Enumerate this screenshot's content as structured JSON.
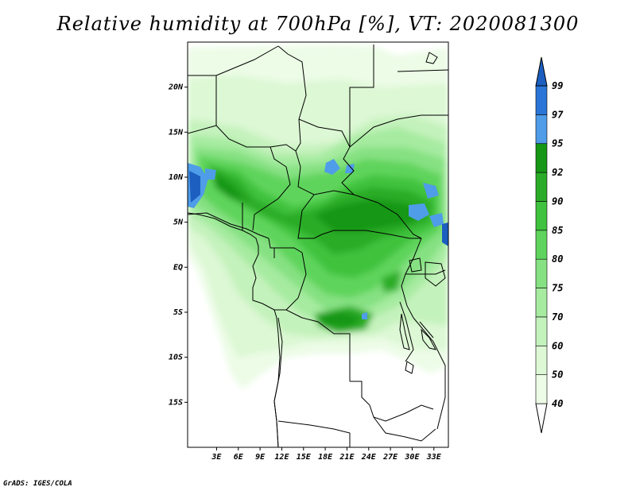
{
  "title": "Relative humidity at 700hPa [%], VT: 2020081300",
  "credit": "GrADS: IGES/COLA",
  "map": {
    "lon_range": [
      -1,
      35
    ],
    "lat_range": [
      -20,
      25
    ],
    "lat_ticks": [
      {
        "value": 20,
        "label": "20N"
      },
      {
        "value": 15,
        "label": "15N"
      },
      {
        "value": 10,
        "label": "10N"
      },
      {
        "value": 5,
        "label": "5N"
      },
      {
        "value": 0,
        "label": "EQ"
      },
      {
        "value": -5,
        "label": "5S"
      },
      {
        "value": -10,
        "label": "10S"
      },
      {
        "value": -15,
        "label": "15S"
      }
    ],
    "lon_ticks": [
      {
        "value": 3,
        "label": "3E"
      },
      {
        "value": 6,
        "label": "6E"
      },
      {
        "value": 9,
        "label": "9E"
      },
      {
        "value": 12,
        "label": "12E"
      },
      {
        "value": 15,
        "label": "15E"
      },
      {
        "value": 18,
        "label": "18E"
      },
      {
        "value": 21,
        "label": "21E"
      },
      {
        "value": 24,
        "label": "24E"
      },
      {
        "value": 27,
        "label": "27E"
      },
      {
        "value": 30,
        "label": "30E"
      },
      {
        "value": 33,
        "label": "33E"
      }
    ]
  },
  "colorbar": {
    "levels": [
      {
        "label": "40",
        "color": "#ecfce6"
      },
      {
        "label": "50",
        "color": "#dcf8d4"
      },
      {
        "label": "60",
        "color": "#c4f2bc"
      },
      {
        "label": "70",
        "color": "#a6eba0"
      },
      {
        "label": "75",
        "color": "#86e182"
      },
      {
        "label": "80",
        "color": "#5ed45c"
      },
      {
        "label": "85",
        "color": "#3fc23d"
      },
      {
        "label": "90",
        "color": "#2aac28"
      },
      {
        "label": "92",
        "color": "#169716"
      },
      {
        "label": "95",
        "color": "#4f9ce8"
      },
      {
        "label": "97",
        "color": "#2a75d8"
      },
      {
        "label": "99",
        "color": "#1c5fc0"
      }
    ],
    "below_color": "#ffffff",
    "above_color": "#1c5fc0"
  }
}
